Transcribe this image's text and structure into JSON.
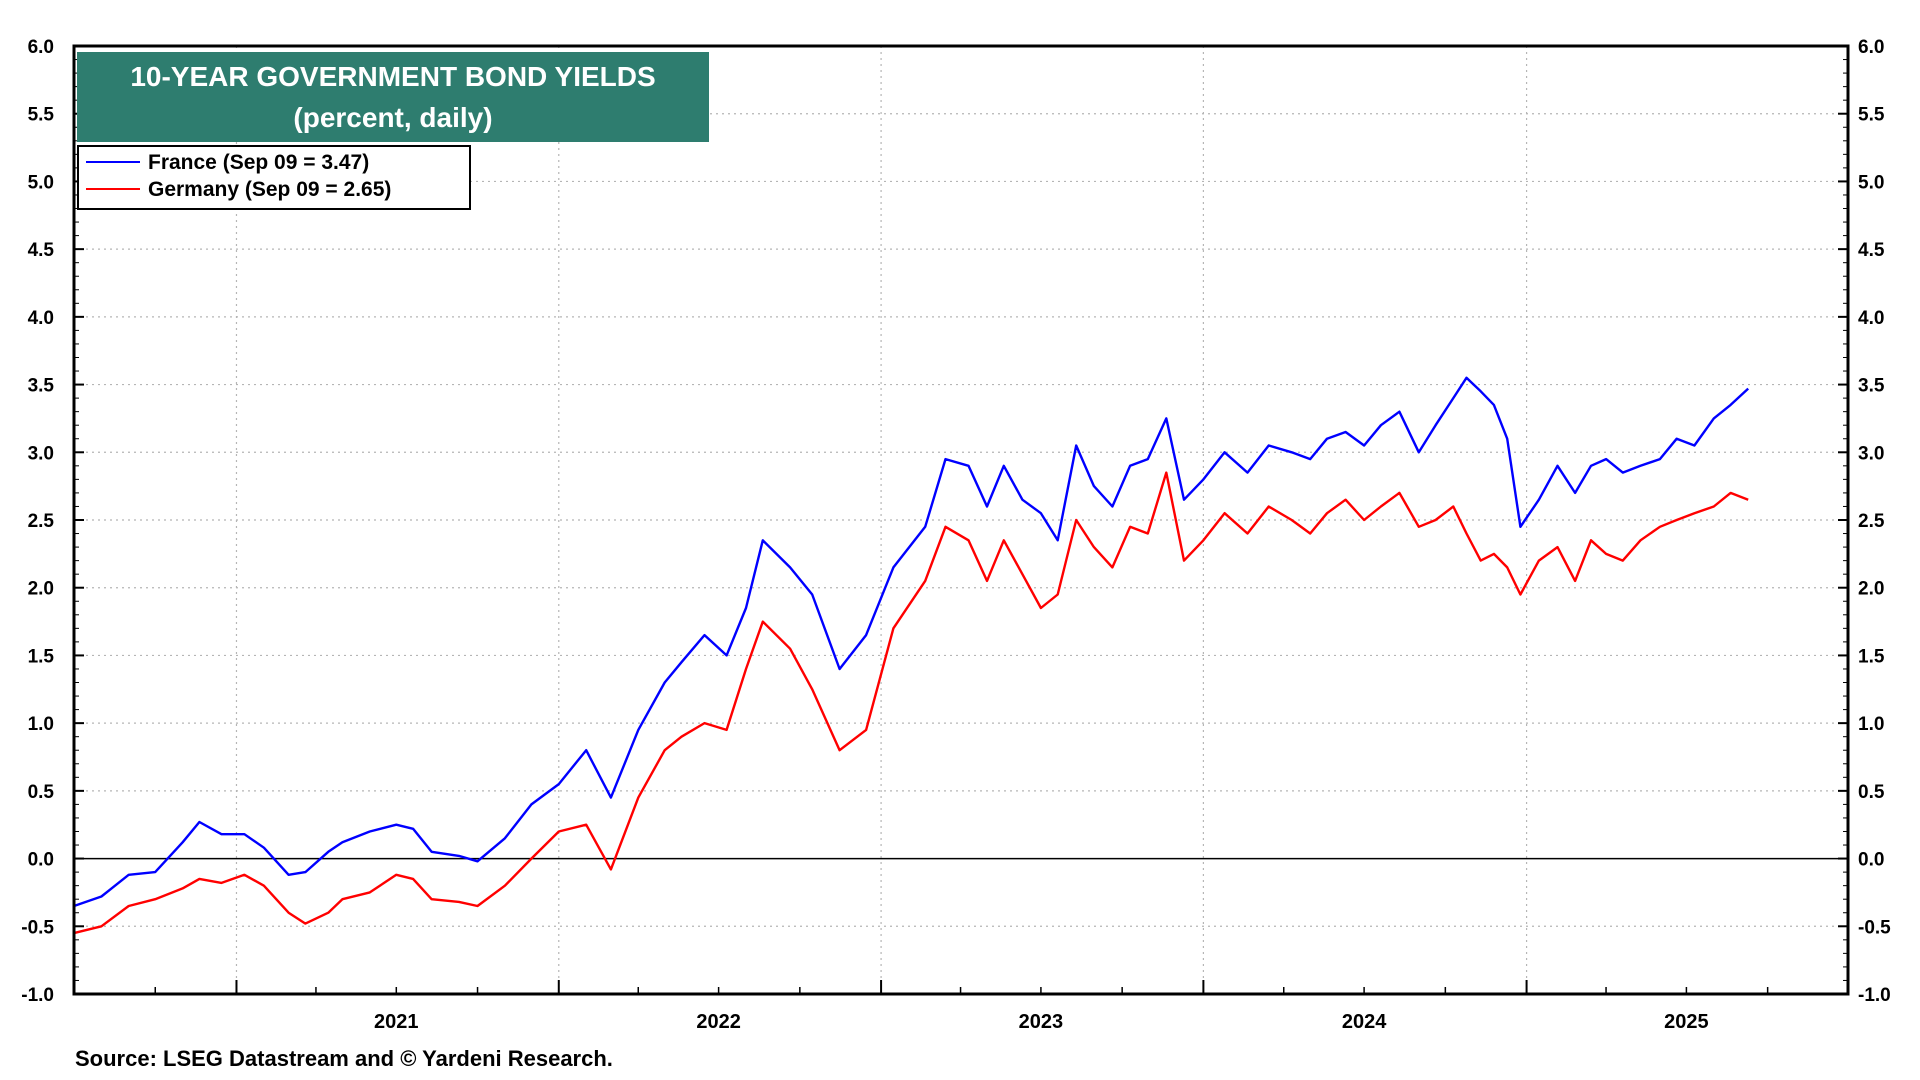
{
  "chart_data": {
    "type": "line",
    "title": "10-YEAR GOVERNMENT BOND YIELDS",
    "subtitle": "(percent, daily)",
    "source": "Source: LSEG Datastream and © Yardeni Research.",
    "ylim": [
      -1.0,
      6.0
    ],
    "y_ticks": [
      "6.0",
      "5.5",
      "5.0",
      "4.5",
      "4.0",
      "3.5",
      "3.0",
      "2.5",
      "2.0",
      "1.5",
      "1.0",
      "0.5",
      "0.0",
      "-0.5",
      "-1.0"
    ],
    "x_ticks": [
      "2021",
      "2022",
      "2023",
      "2024",
      "2025"
    ],
    "xlim": [
      "2020-07-01",
      "2025-12-31"
    ],
    "grid": true,
    "zero_line": true,
    "legend_position": "top-left",
    "series": [
      {
        "name": "France (Sep 09 = 3.47)",
        "color": "#0000ff",
        "points": [
          [
            "2020-07-01",
            -0.35
          ],
          [
            "2020-08-01",
            -0.28
          ],
          [
            "2020-09-01",
            -0.12
          ],
          [
            "2020-10-01",
            -0.1
          ],
          [
            "2020-11-01",
            0.12
          ],
          [
            "2020-11-20",
            0.27
          ],
          [
            "2020-12-15",
            0.18
          ],
          [
            "2021-01-10",
            0.18
          ],
          [
            "2021-02-01",
            0.08
          ],
          [
            "2021-03-01",
            -0.12
          ],
          [
            "2021-03-20",
            -0.1
          ],
          [
            "2021-04-15",
            0.05
          ],
          [
            "2021-05-01",
            0.12
          ],
          [
            "2021-06-01",
            0.2
          ],
          [
            "2021-07-01",
            0.25
          ],
          [
            "2021-07-20",
            0.22
          ],
          [
            "2021-08-10",
            0.05
          ],
          [
            "2021-09-10",
            0.02
          ],
          [
            "2021-10-01",
            -0.02
          ],
          [
            "2021-11-01",
            0.15
          ],
          [
            "2021-12-01",
            0.4
          ],
          [
            "2022-01-01",
            0.55
          ],
          [
            "2022-02-01",
            0.8
          ],
          [
            "2022-03-01",
            0.45
          ],
          [
            "2022-04-01",
            0.95
          ],
          [
            "2022-05-01",
            1.3
          ],
          [
            "2022-05-20",
            1.45
          ],
          [
            "2022-06-15",
            1.65
          ],
          [
            "2022-07-10",
            1.5
          ],
          [
            "2022-08-01",
            1.85
          ],
          [
            "2022-08-20",
            2.35
          ],
          [
            "2022-09-20",
            2.15
          ],
          [
            "2022-10-15",
            1.95
          ],
          [
            "2022-11-15",
            1.4
          ],
          [
            "2022-12-15",
            1.65
          ],
          [
            "2023-01-15",
            2.15
          ],
          [
            "2023-02-20",
            2.45
          ],
          [
            "2023-03-15",
            2.95
          ],
          [
            "2023-04-10",
            2.9
          ],
          [
            "2023-05-01",
            2.6
          ],
          [
            "2023-05-20",
            2.9
          ],
          [
            "2023-06-10",
            2.65
          ],
          [
            "2023-07-01",
            2.55
          ],
          [
            "2023-07-20",
            2.35
          ],
          [
            "2023-08-10",
            3.05
          ],
          [
            "2023-08-30",
            2.75
          ],
          [
            "2023-09-20",
            2.6
          ],
          [
            "2023-10-10",
            2.9
          ],
          [
            "2023-10-30",
            2.95
          ],
          [
            "2023-11-20",
            3.25
          ],
          [
            "2023-12-10",
            2.65
          ],
          [
            "2024-01-01",
            2.8
          ],
          [
            "2024-01-25",
            3.0
          ],
          [
            "2024-02-20",
            2.85
          ],
          [
            "2024-03-15",
            3.05
          ],
          [
            "2024-04-10",
            3.0
          ],
          [
            "2024-05-01",
            2.95
          ],
          [
            "2024-05-20",
            3.1
          ],
          [
            "2024-06-10",
            3.15
          ],
          [
            "2024-07-01",
            3.05
          ],
          [
            "2024-07-20",
            3.2
          ],
          [
            "2024-08-10",
            3.3
          ],
          [
            "2024-09-01",
            3.0
          ],
          [
            "2024-09-20",
            3.2
          ],
          [
            "2024-10-10",
            3.4
          ],
          [
            "2024-10-25",
            3.55
          ],
          [
            "2024-11-10",
            3.45
          ],
          [
            "2024-11-25",
            3.35
          ],
          [
            "2024-12-10",
            3.1
          ],
          [
            "2024-12-25",
            2.45
          ],
          [
            "2025-01-15",
            2.65
          ],
          [
            "2025-02-05",
            2.9
          ],
          [
            "2025-02-25",
            2.7
          ],
          [
            "2025-03-15",
            2.9
          ],
          [
            "2025-04-01",
            2.95
          ],
          [
            "2025-04-20",
            2.85
          ],
          [
            "2025-05-10",
            2.9
          ],
          [
            "2025-06-01",
            2.95
          ],
          [
            "2025-06-20",
            3.1
          ],
          [
            "2025-07-10",
            3.05
          ],
          [
            "2025-08-01",
            3.25
          ],
          [
            "2025-08-20",
            3.35
          ],
          [
            "2025-09-09",
            3.47
          ]
        ]
      },
      {
        "name": "Germany (Sep 09 = 2.65)",
        "color": "#ff0000",
        "points": [
          [
            "2020-07-01",
            -0.55
          ],
          [
            "2020-08-01",
            -0.5
          ],
          [
            "2020-09-01",
            -0.35
          ],
          [
            "2020-10-01",
            -0.3
          ],
          [
            "2020-11-01",
            -0.22
          ],
          [
            "2020-11-20",
            -0.15
          ],
          [
            "2020-12-15",
            -0.18
          ],
          [
            "2021-01-10",
            -0.12
          ],
          [
            "2021-02-01",
            -0.2
          ],
          [
            "2021-03-01",
            -0.4
          ],
          [
            "2021-03-20",
            -0.48
          ],
          [
            "2021-04-15",
            -0.4
          ],
          [
            "2021-05-01",
            -0.3
          ],
          [
            "2021-06-01",
            -0.25
          ],
          [
            "2021-07-01",
            -0.12
          ],
          [
            "2021-07-20",
            -0.15
          ],
          [
            "2021-08-10",
            -0.3
          ],
          [
            "2021-09-10",
            -0.32
          ],
          [
            "2021-10-01",
            -0.35
          ],
          [
            "2021-11-01",
            -0.2
          ],
          [
            "2021-12-01",
            0.0
          ],
          [
            "2022-01-01",
            0.2
          ],
          [
            "2022-02-01",
            0.25
          ],
          [
            "2022-03-01",
            -0.08
          ],
          [
            "2022-04-01",
            0.45
          ],
          [
            "2022-05-01",
            0.8
          ],
          [
            "2022-05-20",
            0.9
          ],
          [
            "2022-06-15",
            1.0
          ],
          [
            "2022-07-10",
            0.95
          ],
          [
            "2022-08-01",
            1.4
          ],
          [
            "2022-08-20",
            1.75
          ],
          [
            "2022-09-20",
            1.55
          ],
          [
            "2022-10-15",
            1.25
          ],
          [
            "2022-11-15",
            0.8
          ],
          [
            "2022-12-15",
            0.95
          ],
          [
            "2023-01-15",
            1.7
          ],
          [
            "2023-02-20",
            2.05
          ],
          [
            "2023-03-15",
            2.45
          ],
          [
            "2023-04-10",
            2.35
          ],
          [
            "2023-05-01",
            2.05
          ],
          [
            "2023-05-20",
            2.35
          ],
          [
            "2023-06-10",
            2.1
          ],
          [
            "2023-07-01",
            1.85
          ],
          [
            "2023-07-20",
            1.95
          ],
          [
            "2023-08-10",
            2.5
          ],
          [
            "2023-08-30",
            2.3
          ],
          [
            "2023-09-20",
            2.15
          ],
          [
            "2023-10-10",
            2.45
          ],
          [
            "2023-10-30",
            2.4
          ],
          [
            "2023-11-20",
            2.85
          ],
          [
            "2023-12-10",
            2.2
          ],
          [
            "2024-01-01",
            2.35
          ],
          [
            "2024-01-25",
            2.55
          ],
          [
            "2024-02-20",
            2.4
          ],
          [
            "2024-03-15",
            2.6
          ],
          [
            "2024-04-10",
            2.5
          ],
          [
            "2024-05-01",
            2.4
          ],
          [
            "2024-05-20",
            2.55
          ],
          [
            "2024-06-10",
            2.65
          ],
          [
            "2024-07-01",
            2.5
          ],
          [
            "2024-07-20",
            2.6
          ],
          [
            "2024-08-10",
            2.7
          ],
          [
            "2024-09-01",
            2.45
          ],
          [
            "2024-09-20",
            2.5
          ],
          [
            "2024-10-10",
            2.6
          ],
          [
            "2024-10-25",
            2.4
          ],
          [
            "2024-11-10",
            2.2
          ],
          [
            "2024-11-25",
            2.25
          ],
          [
            "2024-12-10",
            2.15
          ],
          [
            "2024-12-25",
            1.95
          ],
          [
            "2025-01-15",
            2.2
          ],
          [
            "2025-02-05",
            2.3
          ],
          [
            "2025-02-25",
            2.05
          ],
          [
            "2025-03-15",
            2.35
          ],
          [
            "2025-04-01",
            2.25
          ],
          [
            "2025-04-20",
            2.2
          ],
          [
            "2025-05-10",
            2.35
          ],
          [
            "2025-06-01",
            2.45
          ],
          [
            "2025-06-20",
            2.5
          ],
          [
            "2025-07-10",
            2.55
          ],
          [
            "2025-08-01",
            2.6
          ],
          [
            "2025-08-20",
            2.7
          ],
          [
            "2025-09-09",
            2.65
          ]
        ]
      }
    ]
  }
}
